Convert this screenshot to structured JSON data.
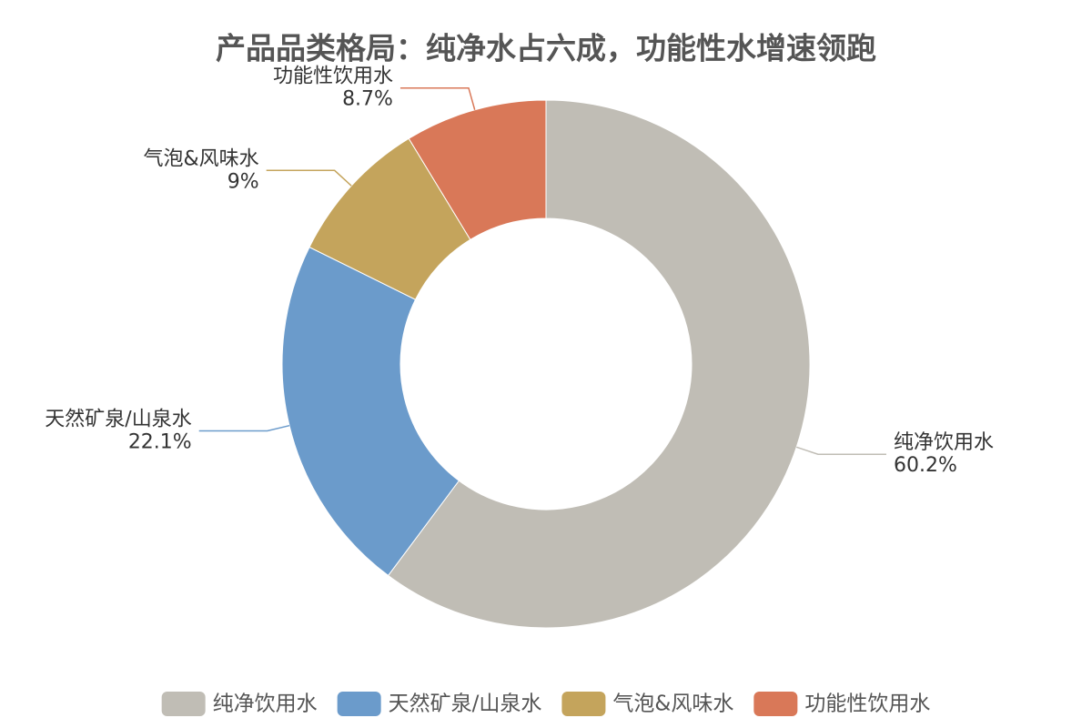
{
  "chart_data": {
    "type": "pie",
    "title": "产品品类格局：纯净水占六成，功能性水增速领跑",
    "categories": [
      "纯净饮用水",
      "天然矿泉/山泉水",
      "气泡&风味水",
      "功能性饮用水"
    ],
    "values": [
      60.2,
      22.1,
      9,
      8.7
    ],
    "value_labels": [
      "60.2%",
      "22.1%",
      "9%",
      "8.7%"
    ],
    "colors": [
      "#c0bdb5",
      "#6b9bcb",
      "#c4a45c",
      "#d97858"
    ],
    "legend": "bottom"
  }
}
